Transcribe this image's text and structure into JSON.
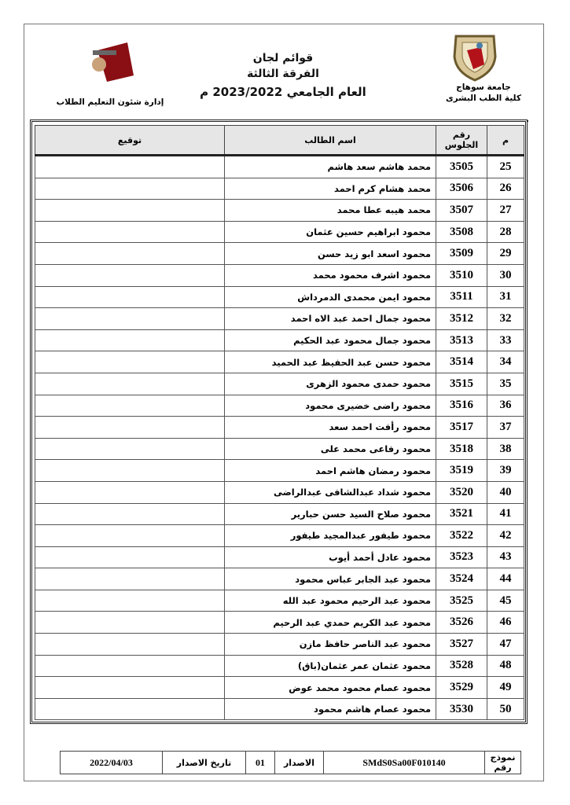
{
  "header": {
    "title_line1": "قوائم لجان",
    "title_line2": "الفرقة الثالثة",
    "title_line3": "العام الجامعي 2023/2022 م",
    "right_logo_caption1": "جامعة سوهاج",
    "right_logo_caption2": "كلية الطب البشرى",
    "left_logo_caption": "إدارة شئون التعليم الطلاب",
    "left_logo_text": "جامعة سوهاج كلية الطب",
    "accent_color": "#b3121a"
  },
  "table": {
    "columns": [
      "م",
      "رقم الجلوس",
      "اسم الطالب",
      "توقيع"
    ],
    "rows": [
      {
        "n": "25",
        "seat": "3505",
        "name": "محمد هاشم سعد هاشم"
      },
      {
        "n": "26",
        "seat": "3506",
        "name": "محمد هشام كرم احمد"
      },
      {
        "n": "27",
        "seat": "3507",
        "name": "محمد هيبه عطا محمد"
      },
      {
        "n": "28",
        "seat": "3508",
        "name": "محمود ابراهيم حسين عثمان"
      },
      {
        "n": "29",
        "seat": "3509",
        "name": "محمود اسعد ابو زيد حسن"
      },
      {
        "n": "30",
        "seat": "3510",
        "name": "محمود اشرف محمود محمد"
      },
      {
        "n": "31",
        "seat": "3511",
        "name": "محمود ايمن محمدى الدمرداش"
      },
      {
        "n": "32",
        "seat": "3512",
        "name": "محمود جمال احمد عبد الاه احمد"
      },
      {
        "n": "33",
        "seat": "3513",
        "name": "محمود جمال محمود عبد الحكيم"
      },
      {
        "n": "34",
        "seat": "3514",
        "name": "محمود حسن عبد الحفيظ عبد الحميد"
      },
      {
        "n": "35",
        "seat": "3515",
        "name": "محمود حمدى محمود الزهرى"
      },
      {
        "n": "36",
        "seat": "3516",
        "name": "محمود راضى خضيرى محمود"
      },
      {
        "n": "37",
        "seat": "3517",
        "name": "محمود رأفت احمد سعد"
      },
      {
        "n": "38",
        "seat": "3518",
        "name": "محمود رفاعى محمد على"
      },
      {
        "n": "39",
        "seat": "3519",
        "name": "محمود رمضان هاشم احمد"
      },
      {
        "n": "40",
        "seat": "3520",
        "name": "محمود شداد عبدالشافى عبدالراضى"
      },
      {
        "n": "41",
        "seat": "3521",
        "name": "محمود صلاح السيد حسن حبارير"
      },
      {
        "n": "42",
        "seat": "3522",
        "name": "محمود طيفور عبدالمجيد طيفور"
      },
      {
        "n": "43",
        "seat": "3523",
        "name": "محمود عادل أحمد أيوب"
      },
      {
        "n": "44",
        "seat": "3524",
        "name": "محمود عبد الجابر عباس محمود"
      },
      {
        "n": "45",
        "seat": "3525",
        "name": "محمود عبد الرحيم محمود عبد الله"
      },
      {
        "n": "46",
        "seat": "3526",
        "name": "محمود عبد الكريم حمدي عبد الرحيم"
      },
      {
        "n": "47",
        "seat": "3527",
        "name": "محمود عبد الناصر حافظ مازن"
      },
      {
        "n": "48",
        "seat": "3528",
        "name": "محمود عثمان عمر عثمان(باق)"
      },
      {
        "n": "49",
        "seat": "3529",
        "name": "محمود عصام محمود محمد عوض"
      },
      {
        "n": "50",
        "seat": "3530",
        "name": "محمود عصام هاشم محمود"
      }
    ]
  },
  "footer": {
    "form_label": "نموذج رقم",
    "form_code": "SMdS0Sa00F010140",
    "version_label": "الاصدار",
    "version": "01",
    "date_label": "تاريخ الاصدار",
    "date": "2022/04/03"
  }
}
